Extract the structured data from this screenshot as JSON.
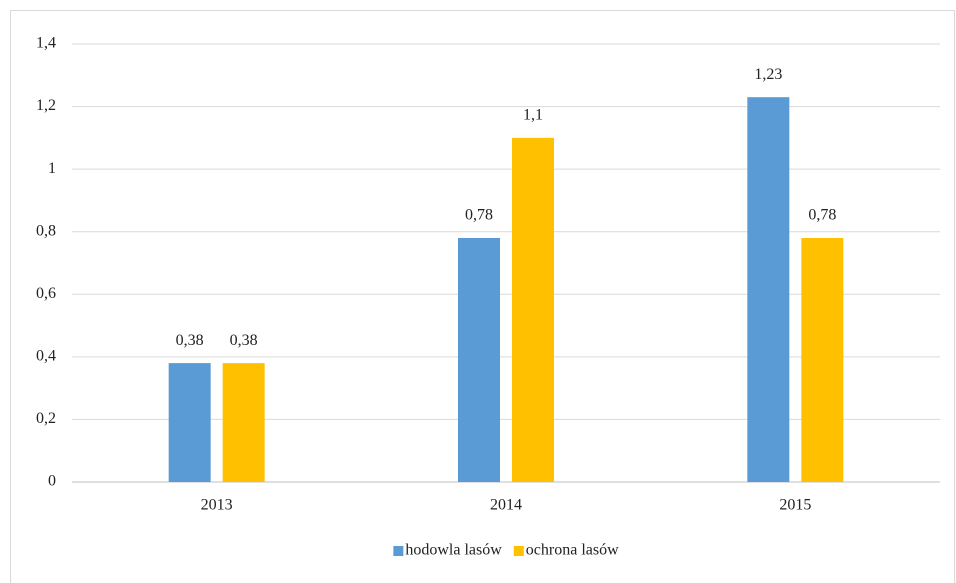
{
  "chart_data": {
    "type": "bar",
    "categories": [
      "2013",
      "2014",
      "2015"
    ],
    "series": [
      {
        "name": "hodowla lasów",
        "color": "#5b9bd5",
        "values": [
          0.38,
          0.78,
          1.23
        ],
        "value_labels": [
          "0,38",
          "0,78",
          "1,23"
        ]
      },
      {
        "name": "ochrona lasów",
        "color": "#ffc000",
        "values": [
          0.38,
          1.1,
          0.78
        ],
        "value_labels": [
          "0,38",
          "1,1",
          "0,78"
        ]
      }
    ],
    "ylim": [
      0,
      1.4
    ],
    "yticks": [
      0,
      {
        "value": 0.2,
        "label": "0,2"
      },
      {
        "value": 0.4,
        "label": "0,4"
      },
      {
        "value": 0.6,
        "label": "0,6"
      },
      {
        "value": 0.8,
        "label": "0,8"
      },
      1,
      {
        "value": 1.2,
        "label": "1,2"
      },
      {
        "value": 1.4,
        "label": "1,4"
      }
    ],
    "grid": true,
    "legend": "bottom"
  }
}
